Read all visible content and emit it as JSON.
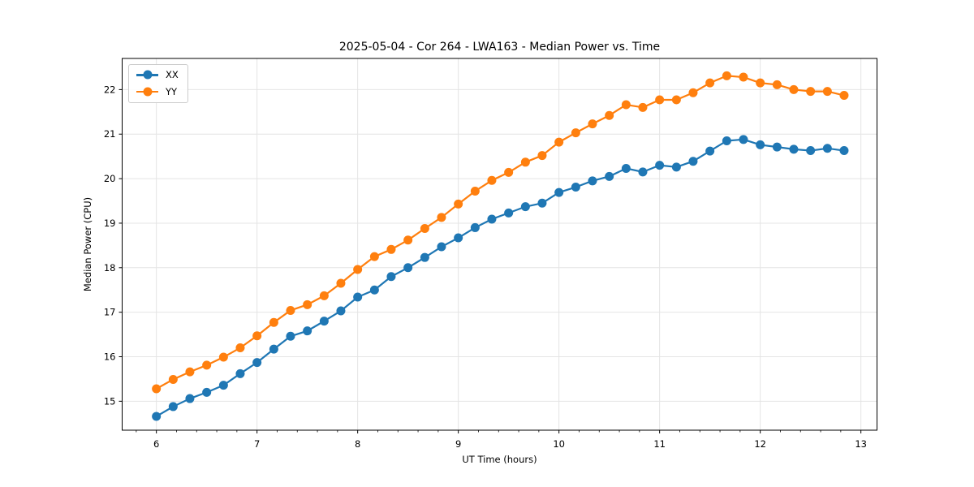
{
  "chart_data": {
    "type": "line",
    "title": "2025-05-04 - Cor 264 - LWA163 - Median Power vs. Time",
    "xlabel": "UT Time (hours)",
    "ylabel": "Median Power (CPU)",
    "x": [
      6.0,
      6.167,
      6.333,
      6.5,
      6.667,
      6.833,
      7.0,
      7.167,
      7.333,
      7.5,
      7.667,
      7.833,
      8.0,
      8.167,
      8.333,
      8.5,
      8.667,
      8.833,
      9.0,
      9.167,
      9.333,
      9.5,
      9.667,
      9.833,
      10.0,
      10.167,
      10.333,
      10.5,
      10.667,
      10.833,
      11.0,
      11.167,
      11.333,
      11.5,
      11.667,
      11.833,
      12.0,
      12.167,
      12.333,
      12.5,
      12.667,
      12.833
    ],
    "series": [
      {
        "name": "XX",
        "color": "#1f77b4",
        "values": [
          14.66,
          14.88,
          15.06,
          15.2,
          15.36,
          15.62,
          15.87,
          16.17,
          16.46,
          16.58,
          16.8,
          17.03,
          17.34,
          17.5,
          17.8,
          18.0,
          18.23,
          18.47,
          18.67,
          18.9,
          19.09,
          19.23,
          19.37,
          19.45,
          19.69,
          19.81,
          19.95,
          20.05,
          20.23,
          20.15,
          20.3,
          20.26,
          20.39,
          20.62,
          20.85,
          20.88,
          20.76,
          20.71,
          20.66,
          20.63,
          20.68,
          20.63
        ]
      },
      {
        "name": "YY",
        "color": "#ff7f0e",
        "values": [
          15.28,
          15.49,
          15.66,
          15.81,
          15.99,
          16.2,
          16.47,
          16.77,
          17.04,
          17.17,
          17.37,
          17.65,
          17.96,
          18.25,
          18.41,
          18.62,
          18.88,
          19.13,
          19.43,
          19.72,
          19.96,
          20.14,
          20.37,
          20.52,
          20.82,
          21.03,
          21.23,
          21.42,
          21.66,
          21.6,
          21.77,
          21.77,
          21.93,
          22.15,
          22.31,
          22.28,
          22.15,
          22.11,
          22.0,
          21.96,
          21.96,
          21.87
        ]
      }
    ],
    "xlim": [
      5.66,
      13.16
    ],
    "ylim": [
      14.35,
      22.7
    ],
    "xticks": [
      6,
      7,
      8,
      9,
      10,
      11,
      12,
      13
    ],
    "yticks": [
      15,
      16,
      17,
      18,
      19,
      20,
      21,
      22
    ],
    "x_minor_step": 0.2,
    "grid": true,
    "legend_position": "upper left",
    "marker": "circle",
    "grid_color": "#e4e4e4",
    "axis_color": "#000000"
  }
}
